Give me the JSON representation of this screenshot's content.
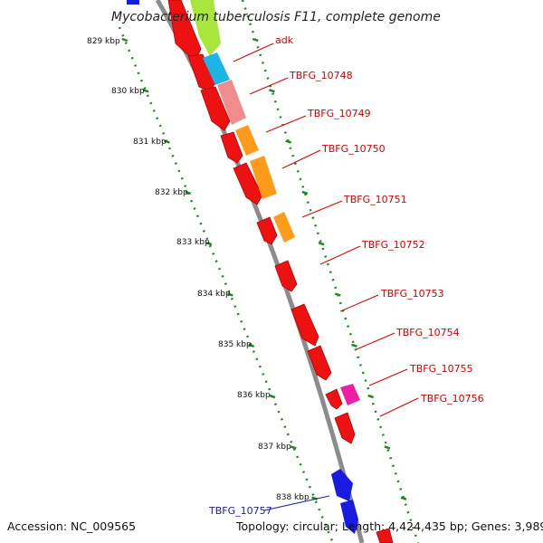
{
  "title": "Mycobacterium tuberculosis F11, complete genome",
  "footer": {
    "accession": "Accession: NC_009565",
    "summary": "Topology: circular; Length: 4,424,435 bp; Genes: 3,989"
  },
  "colors": {
    "backbone": "#8c8c8c",
    "tick": "#1e8a1e",
    "label": "#d40000",
    "label_blue": "#1a1aa8",
    "gene_red": "#ee1111",
    "gene_blue": "#1a1ae0",
    "gene_green": "#a8e63c",
    "gene_cyan": "#1eb4e6",
    "gene_pink": "#f08c8c",
    "gene_orange": "#ff9b1a",
    "gene_magenta": "#ee1ea6"
  },
  "scale_labels": [
    "829 kbp",
    "830 kbp",
    "831 kbp",
    "832 kbp",
    "833 kbp",
    "834 kbp",
    "835 kbp",
    "836 kbp",
    "837 kbp",
    "838 kbp"
  ],
  "gene_labels": [
    {
      "text": "adk",
      "color": "label"
    },
    {
      "text": "TBFG_10748",
      "color": "label"
    },
    {
      "text": "TBFG_10749",
      "color": "label"
    },
    {
      "text": "TBFG_10750",
      "color": "label"
    },
    {
      "text": "TBFG_10751",
      "color": "label"
    },
    {
      "text": "TBFG_10752",
      "color": "label"
    },
    {
      "text": "TBFG_10753",
      "color": "label"
    },
    {
      "text": "TBFG_10754",
      "color": "label"
    },
    {
      "text": "TBFG_10755",
      "color": "label"
    },
    {
      "text": "TBFG_10756",
      "color": "label"
    },
    {
      "text": "TBFG_10757",
      "color": "label_blue"
    }
  ]
}
